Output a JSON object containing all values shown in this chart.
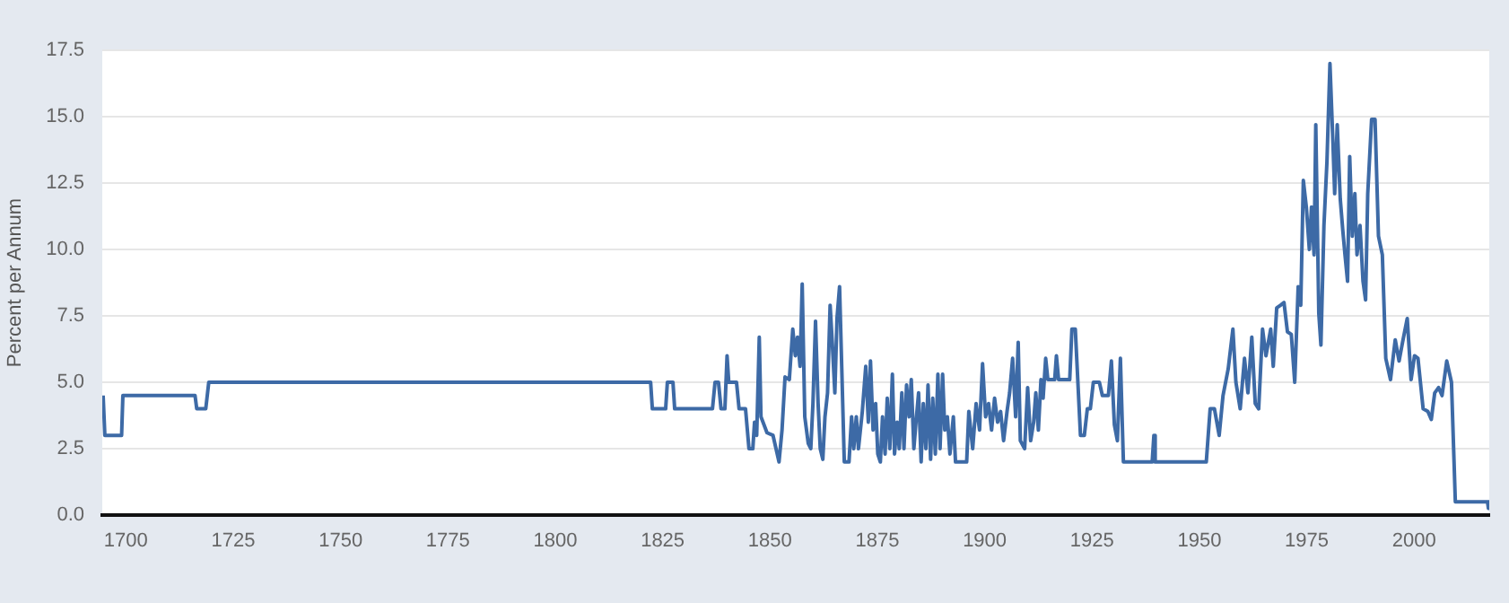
{
  "chart_data": {
    "type": "line",
    "ylabel": "Percent per Annum",
    "color": "#3d6aa6",
    "grid": "y",
    "legend": false,
    "marker": "none",
    "line_style": "solid",
    "xlim": [
      1694.5,
      2017.5
    ],
    "xticks": [
      1700,
      1725,
      1750,
      1775,
      1800,
      1825,
      1850,
      1875,
      1900,
      1925,
      1950,
      1975,
      2000
    ],
    "ylim": [
      0,
      17.5
    ],
    "yticks": [
      {
        "value": 0,
        "label": "0.0"
      },
      {
        "value": 2.5,
        "label": "2.5"
      },
      {
        "value": 5,
        "label": "5.0"
      },
      {
        "value": 7.5,
        "label": "7.5"
      },
      {
        "value": 10,
        "label": "10.0"
      },
      {
        "value": 12.5,
        "label": "12.5"
      },
      {
        "value": 15,
        "label": "15.0"
      },
      {
        "value": 17.5,
        "label": "17.5"
      }
    ],
    "x": [
      1694.7,
      1695.1,
      1699.0,
      1699.3,
      1716.1,
      1716.5,
      1718.6,
      1719.3,
      1822.2,
      1822.6,
      1825.7,
      1826.1,
      1827.4,
      1827.8,
      1836.6,
      1837.2,
      1838.0,
      1838.6,
      1839.5,
      1840.0,
      1840.4,
      1842.2,
      1842.8,
      1844.3,
      1845.1,
      1846.0,
      1846.4,
      1846.9,
      1847.5,
      1847.9,
      1849.3,
      1850.7,
      1851.4,
      1852.1,
      1852.8,
      1853.5,
      1854.5,
      1855.3,
      1855.9,
      1856.4,
      1857.0,
      1857.5,
      1858.1,
      1858.9,
      1859.5,
      1860.0,
      1860.6,
      1861.2,
      1861.7,
      1862.3,
      1862.8,
      1863.4,
      1864.0,
      1864.5,
      1865.1,
      1865.6,
      1866.2,
      1866.7,
      1867.3,
      1868.4,
      1869.0,
      1869.5,
      1870.1,
      1870.6,
      1871.5,
      1872.3,
      1872.9,
      1873.4,
      1874.0,
      1874.6,
      1875.1,
      1875.7,
      1876.2,
      1876.8,
      1877.3,
      1877.9,
      1878.5,
      1879.0,
      1879.6,
      1880.1,
      1880.7,
      1881.2,
      1881.8,
      1882.4,
      1882.9,
      1883.5,
      1884.0,
      1884.6,
      1885.2,
      1885.7,
      1886.3,
      1886.8,
      1887.4,
      1887.9,
      1888.5,
      1889.1,
      1889.6,
      1890.2,
      1890.7,
      1891.3,
      1891.9,
      1892.7,
      1893.2,
      1895.8,
      1896.3,
      1897.2,
      1898.0,
      1898.8,
      1899.5,
      1900.2,
      1900.9,
      1901.6,
      1902.3,
      1903.0,
      1903.7,
      1904.4,
      1905.2,
      1905.8,
      1906.5,
      1907.2,
      1907.8,
      1908.3,
      1909.3,
      1910.0,
      1910.7,
      1911.4,
      1911.9,
      1912.5,
      1913.1,
      1913.6,
      1914.2,
      1914.7,
      1916.3,
      1916.7,
      1917.2,
      1919.8,
      1920.3,
      1921.1,
      1922.3,
      1923.2,
      1923.9,
      1924.6,
      1925.3,
      1926.7,
      1927.4,
      1928.8,
      1929.5,
      1930.2,
      1930.9,
      1931.6,
      1932.3,
      1939.0,
      1939.4,
      1939.7,
      1951.6,
      1952.5,
      1953.5,
      1954.6,
      1955.5,
      1956.7,
      1957.8,
      1958.5,
      1959.5,
      1960.5,
      1961.3,
      1962.2,
      1963.0,
      1963.8,
      1964.7,
      1965.5,
      1966.6,
      1967.2,
      1968.0,
      1968.9,
      1969.7,
      1970.5,
      1971.4,
      1972.2,
      1973.0,
      1973.6,
      1974.2,
      1974.9,
      1975.6,
      1976.1,
      1976.7,
      1977.1,
      1977.8,
      1978.3,
      1979.0,
      1979.7,
      1980.4,
      1981.1,
      1981.5,
      1982.1,
      1982.8,
      1983.4,
      1983.9,
      1984.5,
      1985.0,
      1985.6,
      1986.2,
      1986.7,
      1987.4,
      1988.1,
      1988.7,
      1989.2,
      1990.1,
      1990.9,
      1991.7,
      1992.6,
      1993.4,
      1994.5,
      1995.6,
      1996.5,
      1997.3,
      1998.4,
      1999.3,
      2000.1,
      2000.9,
      2002.1,
      2003.2,
      2004.0,
      2004.8,
      2005.7,
      2006.5,
      2007.6,
      2008.7,
      2009.6,
      2017.1,
      2017.3
    ],
    "values": [
      4.5,
      3,
      3,
      4.5,
      4.5,
      4,
      4,
      5,
      5,
      4,
      4,
      5,
      5,
      4,
      4,
      5,
      5,
      4,
      4,
      6,
      5,
      5,
      4,
      4,
      2.5,
      2.5,
      3.5,
      3,
      6.7,
      3.7,
      3.1,
      3,
      2.5,
      2,
      3.2,
      5.2,
      5.1,
      7,
      6,
      6.7,
      5.6,
      8.7,
      3.7,
      2.7,
      2.5,
      4.2,
      7.3,
      4.2,
      2.5,
      2.1,
      3.7,
      4.6,
      7.9,
      6.5,
      4.6,
      7.4,
      8.6,
      5.6,
      2,
      2,
      3.7,
      2.5,
      3.7,
      2.5,
      3.9,
      5.6,
      3.5,
      5.8,
      3.2,
      4.2,
      2.3,
      2,
      3.7,
      2.3,
      4.4,
      2.5,
      5.3,
      2.3,
      3.5,
      2.5,
      4.6,
      2.5,
      4.9,
      3.7,
      5.1,
      2.5,
      3.5,
      4.6,
      2,
      4.2,
      2.5,
      4.9,
      2.1,
      4.4,
      2.3,
      5.3,
      2.5,
      5.3,
      3.2,
      3.7,
      2.3,
      3.7,
      2,
      2,
      3.9,
      2.5,
      4.2,
      3.2,
      5.7,
      3.7,
      4.2,
      3.2,
      4.4,
      3.5,
      3.9,
      2.8,
      3.9,
      4.6,
      5.9,
      3.7,
      6.5,
      2.8,
      2.5,
      4.8,
      2.8,
      3.5,
      4.6,
      3.2,
      5.1,
      4.4,
      5.9,
      5.1,
      5.1,
      6,
      5.1,
      5.1,
      7,
      7,
      3,
      3,
      4,
      4,
      5,
      5,
      4.5,
      4.5,
      5.8,
      3.4,
      2.8,
      5.9,
      2,
      2,
      3,
      2,
      2,
      4,
      4,
      3,
      4.5,
      5.5,
      7,
      5,
      4,
      5.9,
      4.6,
      6.7,
      4.2,
      4,
      7,
      6,
      7,
      5.6,
      7.8,
      7.9,
      8,
      6.9,
      6.8,
      5,
      8.6,
      7.9,
      12.6,
      11.6,
      10,
      11.6,
      9.8,
      14.7,
      7.6,
      6.4,
      10.9,
      13.3,
      17,
      14,
      12.1,
      14.7,
      11.9,
      10.7,
      9.8,
      8.8,
      13.5,
      10.5,
      12.1,
      9.8,
      10.9,
      8.8,
      8.1,
      12.1,
      14.9,
      14.9,
      10.5,
      9.8,
      5.9,
      5.1,
      6.6,
      5.8,
      6.5,
      7.4,
      5.1,
      6,
      5.9,
      4,
      3.9,
      3.6,
      4.6,
      4.8,
      4.5,
      5.8,
      5,
      0.5,
      0.5,
      0.25
    ]
  }
}
